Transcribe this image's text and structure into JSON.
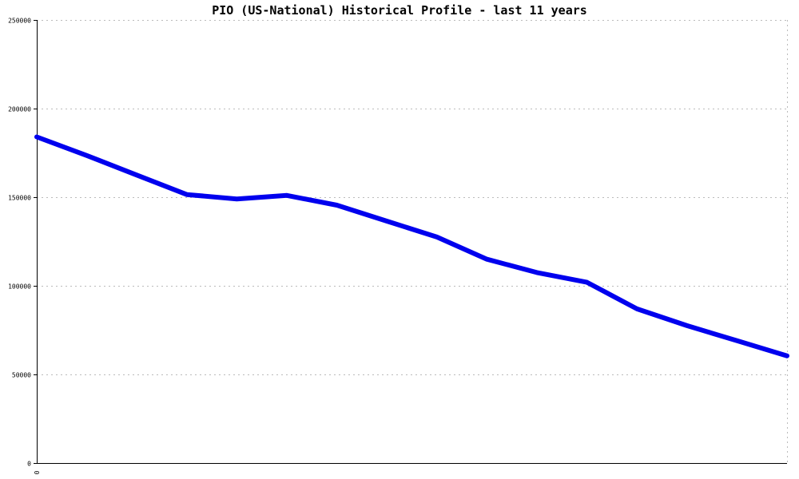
{
  "chart_data": {
    "type": "line",
    "title": "PIO (US-National) Historical Profile - last 11 years",
    "xlabel": "",
    "ylabel": "",
    "x_tick_labels": [
      "0"
    ],
    "y_ticks": [
      0,
      50000,
      100000,
      150000,
      200000,
      250000
    ],
    "y_tick_labels": [
      "0",
      "50000",
      "100000",
      "150000",
      "200000",
      "250000"
    ],
    "ylim": [
      0,
      250000
    ],
    "grid": true,
    "legend": "none",
    "colors": {
      "line": "#0000ee",
      "grid": "#bbbbbb",
      "axis": "#000000"
    },
    "series": [
      {
        "values": [
          184000,
          173500,
          162500,
          151500,
          149000,
          151000,
          145500,
          136500,
          127500,
          115000,
          107500,
          102000,
          87000,
          77500,
          69000,
          60500
        ]
      }
    ]
  }
}
